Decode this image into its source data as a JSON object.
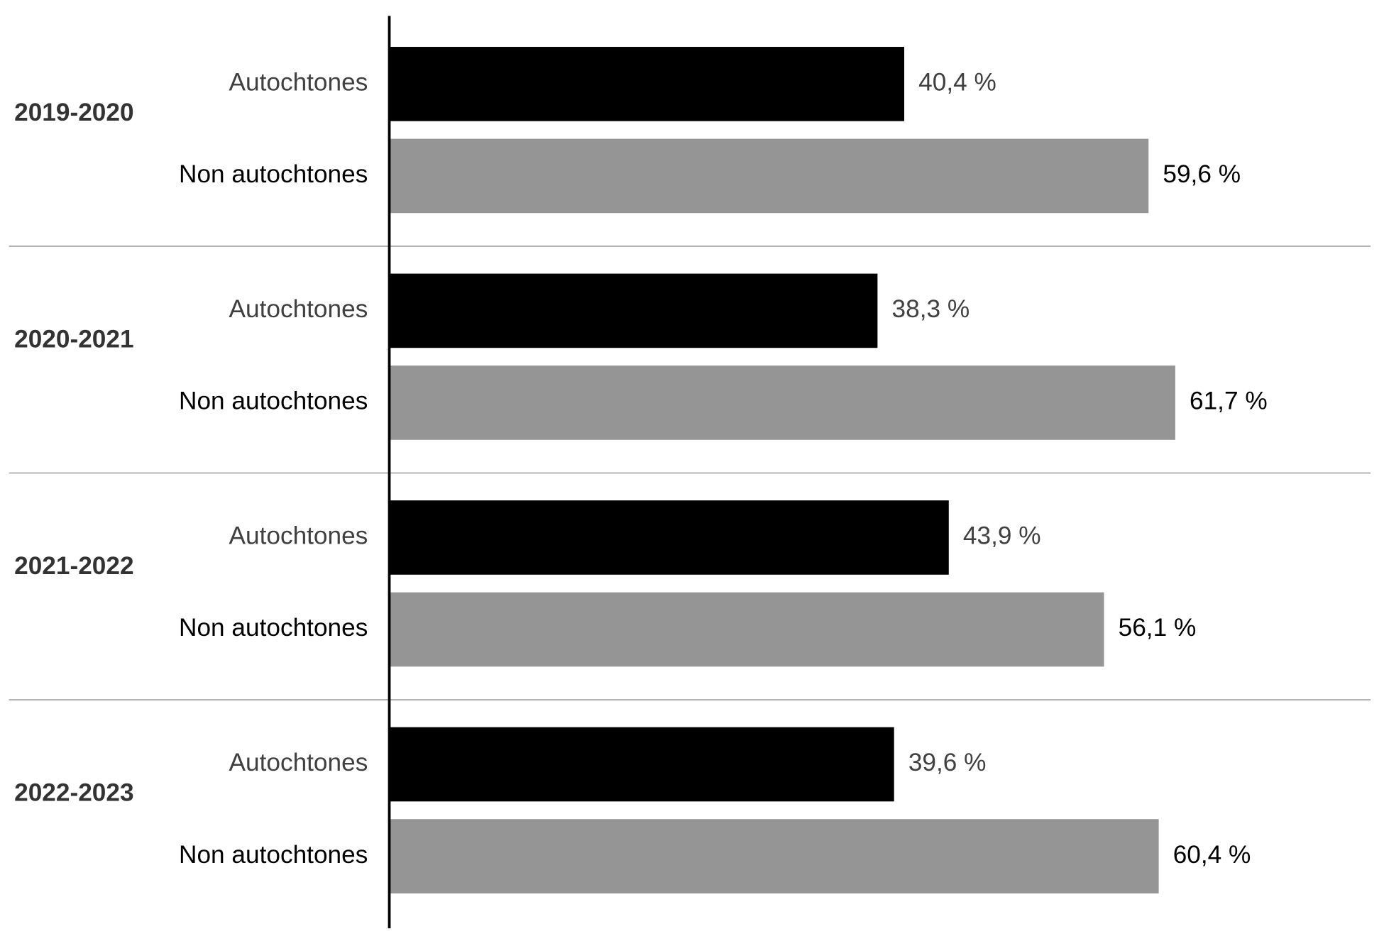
{
  "chart_data": {
    "type": "bar",
    "orientation": "horizontal",
    "categories": [
      "2019-2020",
      "2020-2021",
      "2021-2022",
      "2022-2023"
    ],
    "series": [
      {
        "name": "Autochtones",
        "color": "#000000",
        "values": [
          40.4,
          38.3,
          43.9,
          39.6
        ],
        "value_labels": [
          "40,4 %",
          "38,3 %",
          "43,9 %",
          "39,6 %"
        ]
      },
      {
        "name": "Non autochtones",
        "color": "#969595",
        "values": [
          59.6,
          61.7,
          56.1,
          60.4
        ],
        "value_labels": [
          "59,6 %",
          "61,7 %",
          "56,1 %",
          "60,4 %"
        ]
      }
    ]
  }
}
